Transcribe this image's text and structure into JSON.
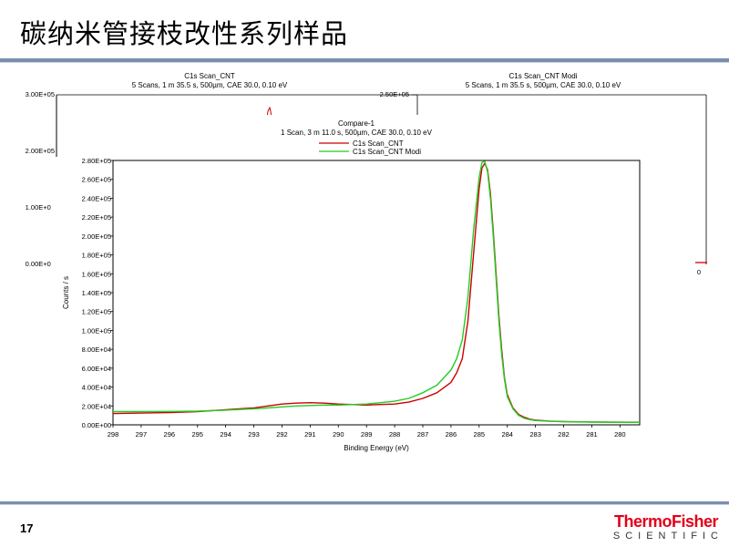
{
  "slide": {
    "title": "碳纳米管接枝改性系列样品",
    "page_number": "17",
    "logo_main": "ThermoFisher",
    "logo_sub": "SCIENTIFIC"
  },
  "chart_data": [
    {
      "type": "line",
      "title": "C1s Scan_CNT",
      "subtitle": "5 Scans,  1 m 35.5 s,  500µm,  CAE 30.0,  0.10 eV",
      "y_ticks": [
        "3.00E+05",
        "2.00E+05",
        "1.00E+05",
        "0.00E+00"
      ],
      "x_tick_visible": "298",
      "ylim": [
        0,
        300000
      ]
    },
    {
      "type": "line",
      "title": "C1s Scan_CNT Modi",
      "subtitle": "5 Scans,  1 m 35.5 s,  500µm,  CAE 30.0,  0.10 eV",
      "y_ticks": [
        "2.50E+05"
      ],
      "x_tick_visible": "0"
    },
    {
      "type": "line",
      "title": "Compare-1",
      "subtitle": "1 Scan,  3 m 11.0 s,  500µm,  CAE 30.0,  0.10 eV",
      "xlabel": "Binding Energy (eV)",
      "ylabel": "Counts / s",
      "xlim": [
        298,
        279.3
      ],
      "ylim": [
        0,
        280000
      ],
      "x_ticks": [
        298,
        297,
        296,
        295,
        294,
        293,
        292,
        291,
        290,
        289,
        288,
        287,
        286,
        285,
        284,
        283,
        282,
        281,
        280
      ],
      "y_ticks": [
        0,
        20000,
        40000,
        60000,
        80000,
        100000,
        120000,
        140000,
        160000,
        180000,
        200000,
        220000,
        240000,
        260000,
        280000
      ],
      "y_tick_labels": [
        "0.00E+00",
        "2.00E+04",
        "4.00E+04",
        "6.00E+04",
        "8.00E+04",
        "1.00E+05",
        "1.20E+05",
        "1.40E+05",
        "1.60E+05",
        "1.80E+05",
        "2.00E+05",
        "2.20E+05",
        "2.40E+05",
        "2.60E+05",
        "2.80E+05"
      ],
      "legend_position": "top",
      "series": [
        {
          "name": "C1s Scan_CNT",
          "color": "#cc0000",
          "x": [
            298,
            297,
            296,
            295,
            294,
            293,
            292.5,
            292,
            291.5,
            291,
            290.5,
            290,
            289.5,
            289,
            288.5,
            288,
            287.5,
            287,
            286.5,
            286,
            285.8,
            285.6,
            285.4,
            285.2,
            285.0,
            284.9,
            284.8,
            284.7,
            284.6,
            284.5,
            284.4,
            284.3,
            284.2,
            284.1,
            284.0,
            283.8,
            283.6,
            283.4,
            283.2,
            283.0,
            282.5,
            282,
            281,
            280,
            279.3
          ],
          "y": [
            12000,
            12500,
            13000,
            14000,
            16000,
            18000,
            20000,
            22000,
            23000,
            23500,
            23000,
            22000,
            21500,
            21000,
            21500,
            22000,
            24000,
            28000,
            34000,
            45000,
            55000,
            70000,
            110000,
            180000,
            250000,
            272000,
            277000,
            270000,
            245000,
            205000,
            160000,
            115000,
            80000,
            50000,
            32000,
            18000,
            11000,
            8000,
            6000,
            5000,
            4000,
            3500,
            3000,
            2800,
            2700
          ]
        },
        {
          "name": "C1s Scan_CNT Modi",
          "color": "#22cc22",
          "x": [
            298,
            297,
            296,
            295,
            294,
            293,
            292.5,
            292,
            291.5,
            291,
            290.5,
            290,
            289.5,
            289,
            288.5,
            288,
            287.5,
            287,
            286.5,
            286,
            285.8,
            285.6,
            285.4,
            285.2,
            285.0,
            284.9,
            284.8,
            284.7,
            284.6,
            284.5,
            284.4,
            284.3,
            284.2,
            284.1,
            284.0,
            283.8,
            283.6,
            283.4,
            283.2,
            283.0,
            282.5,
            282,
            281,
            280,
            279.3
          ],
          "y": [
            14000,
            14000,
            14200,
            14500,
            15500,
            17000,
            18000,
            19000,
            20000,
            20500,
            21000,
            21000,
            21500,
            22000,
            23500,
            25000,
            28000,
            34000,
            42000,
            58000,
            70000,
            90000,
            135000,
            205000,
            262000,
            278000,
            279000,
            268000,
            240000,
            200000,
            155000,
            110000,
            75000,
            48000,
            30000,
            17000,
            10000,
            7000,
            5500,
            4500,
            3800,
            3300,
            2900,
            2700,
            2600
          ]
        }
      ]
    }
  ]
}
